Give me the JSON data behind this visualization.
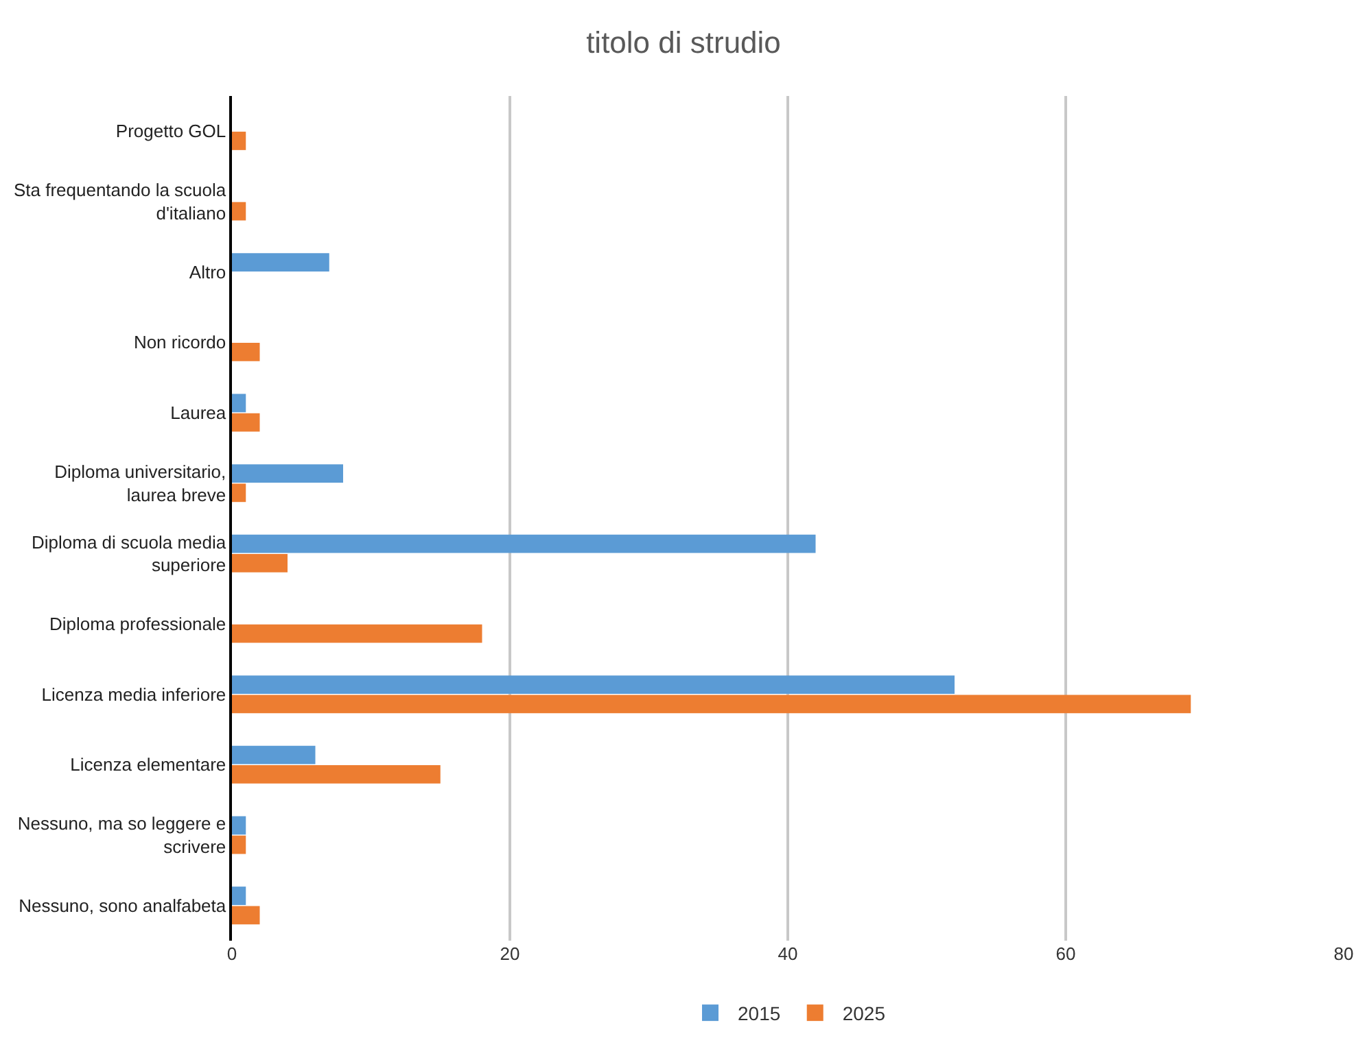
{
  "chart_data": {
    "type": "bar",
    "orientation": "horizontal",
    "title": "titolo di strudio",
    "categories": [
      "Progetto GOL",
      "Sta frequentando la scuola d'italiano",
      "Altro",
      "Non ricordo",
      "Laurea",
      "Diploma universitario, laurea breve",
      "Diploma di scuola media superiore",
      "Diploma professionale",
      "Licenza media inferiore",
      "Licenza elementare",
      "Nessuno, ma so leggere e scrivere",
      "Nessuno, sono analfabeta"
    ],
    "series": [
      {
        "name": "2015",
        "color": "#5b9bd5",
        "values": [
          0,
          0,
          7,
          0,
          1,
          8,
          42,
          0,
          52,
          6,
          1,
          1
        ]
      },
      {
        "name": "2025",
        "color": "#ed7d31",
        "values": [
          1,
          1,
          0,
          2,
          2,
          1,
          4,
          18,
          69,
          15,
          1,
          2
        ]
      }
    ],
    "xlim": [
      0,
      80
    ],
    "xticks": [
      0,
      20,
      40,
      60,
      80
    ],
    "grid": "x",
    "legend": "bottom"
  }
}
